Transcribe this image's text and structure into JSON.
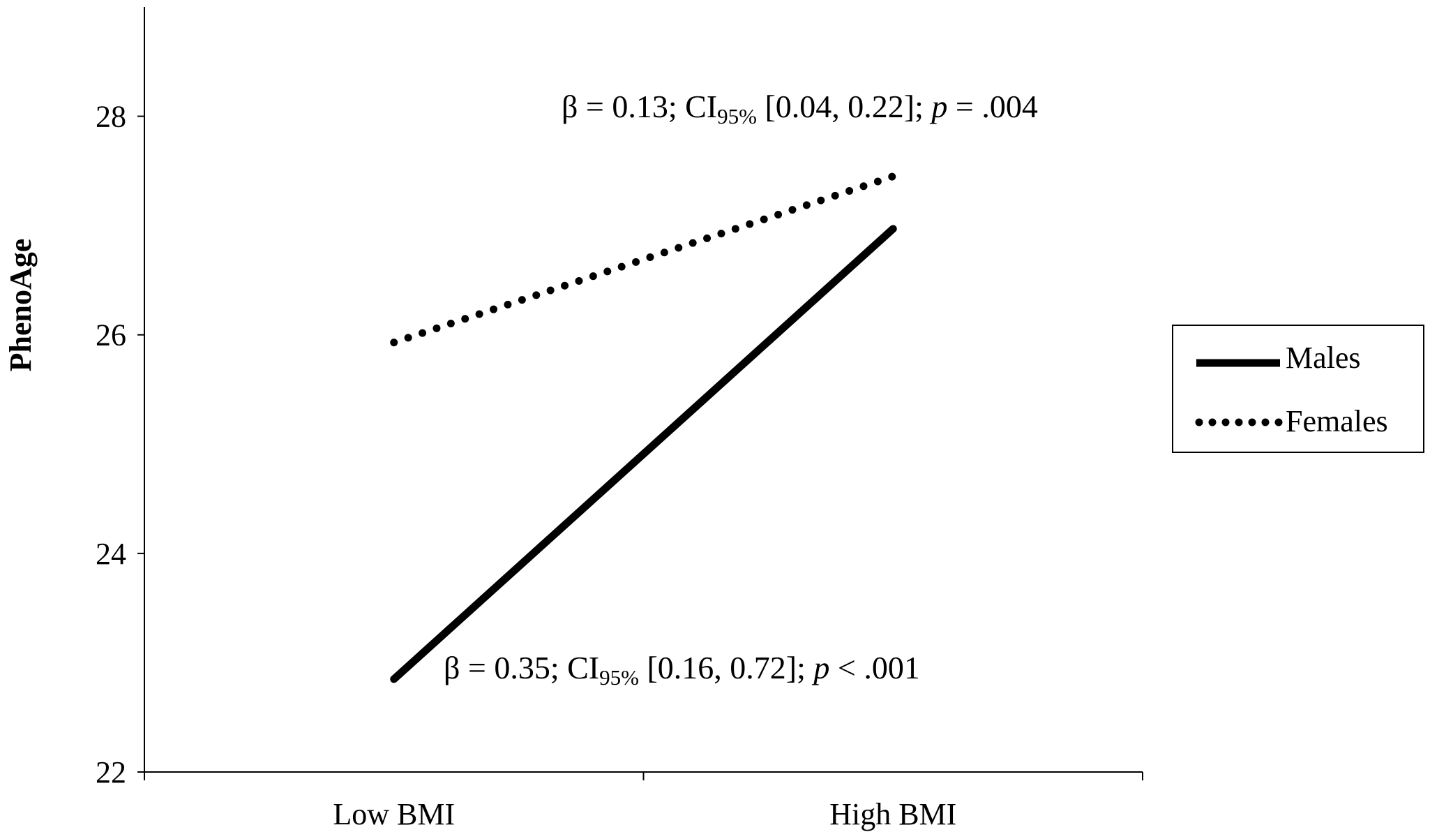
{
  "chart_data": {
    "type": "line",
    "title": "",
    "xlabel": "",
    "ylabel": "PhenoAge",
    "categories": [
      "Low BMI",
      "High BMI"
    ],
    "ylim": [
      22,
      29
    ],
    "yticks": [
      22,
      24,
      26,
      28
    ],
    "grid": false,
    "legend_position": "right",
    "series": [
      {
        "name": "Males",
        "style": "solid",
        "color": "#000000",
        "values": [
          22.85,
          26.97
        ]
      },
      {
        "name": "Females",
        "style": "dotted",
        "color": "#000000",
        "values": [
          25.93,
          27.45
        ]
      }
    ],
    "annotations": [
      {
        "series": "Females",
        "beta": "β = 0.13; CI",
        "sub": "95%",
        "ci": " [0.04, 0.22]; ",
        "p": "p",
        "pval": " = .004"
      },
      {
        "series": "Males",
        "beta": "β = 0.35; CI",
        "sub": "95%",
        "ci": " [0.16, 0.72]; ",
        "p": "p",
        "pval": " < .001"
      }
    ]
  }
}
